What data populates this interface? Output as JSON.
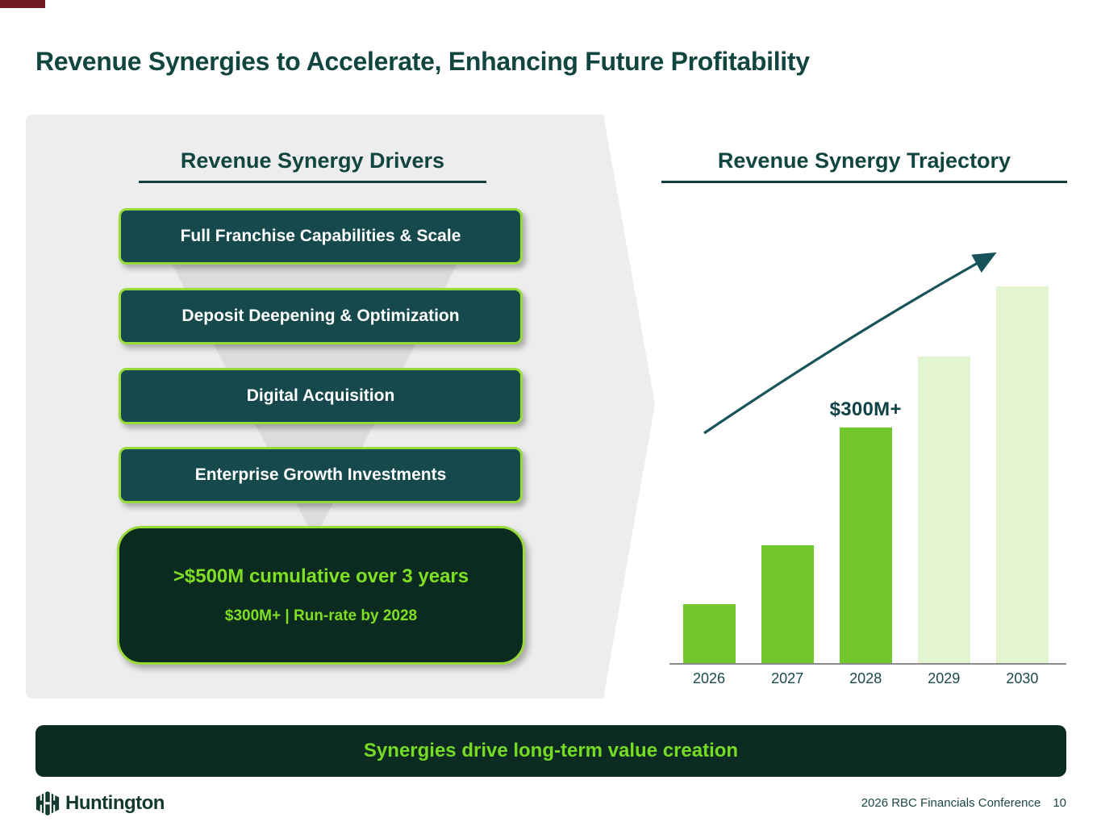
{
  "slide": {
    "title": "Revenue Synergies to Accelerate, Enhancing Future Profitability",
    "banner": "Synergies drive long-term value creation",
    "footer": {
      "brand": "Huntington",
      "conference": "2026 RBC Financials Conference",
      "page_number": "10"
    }
  },
  "drivers": {
    "heading": "Revenue Synergy Drivers",
    "items": [
      "Full Franchise Capabilities & Scale",
      "Deposit Deepening & Optimization",
      "Digital Acquisition",
      "Enterprise Growth Investments"
    ],
    "summary": {
      "line1": ">$500M cumulative over 3 years",
      "line2": "$300M+ | Run-rate by 2028"
    }
  },
  "trajectory": {
    "heading": "Revenue Synergy Trajectory"
  },
  "chart_data": {
    "type": "bar",
    "title": "Revenue Synergy Trajectory",
    "categories": [
      "2026",
      "2027",
      "2028",
      "2029",
      "2030"
    ],
    "values": [
      75,
      150,
      300,
      390,
      480
    ],
    "unit": "$M run-rate (estimated from bar heights; only 2028 labeled)",
    "data_labels": {
      "2028": "$300M+"
    },
    "ylim": [
      0,
      500
    ],
    "xlabel": "",
    "ylabel": "",
    "grid": false,
    "legend": "none",
    "projected_from_index": 3,
    "bar_colors": {
      "actual": "#72c62e",
      "projected": "#e3f4d0"
    },
    "annotations": [
      "upward trend arrow from lower-left to upper-right"
    ]
  },
  "colors": {
    "heading_dark_green": "#114540",
    "box_teal": "#15494c",
    "lime_border": "#9adb3c",
    "lime_text": "#7fdf23",
    "dark_green_fill": "#0b2a20",
    "bar_bright_green": "#72c62e",
    "bar_pale_green": "#e3f4d0",
    "arrow_teal": "#16535a",
    "panel_gray": "#ededed",
    "funnel_gray": "#dcdcdc",
    "accent_bar_maroon": "#701c25"
  }
}
